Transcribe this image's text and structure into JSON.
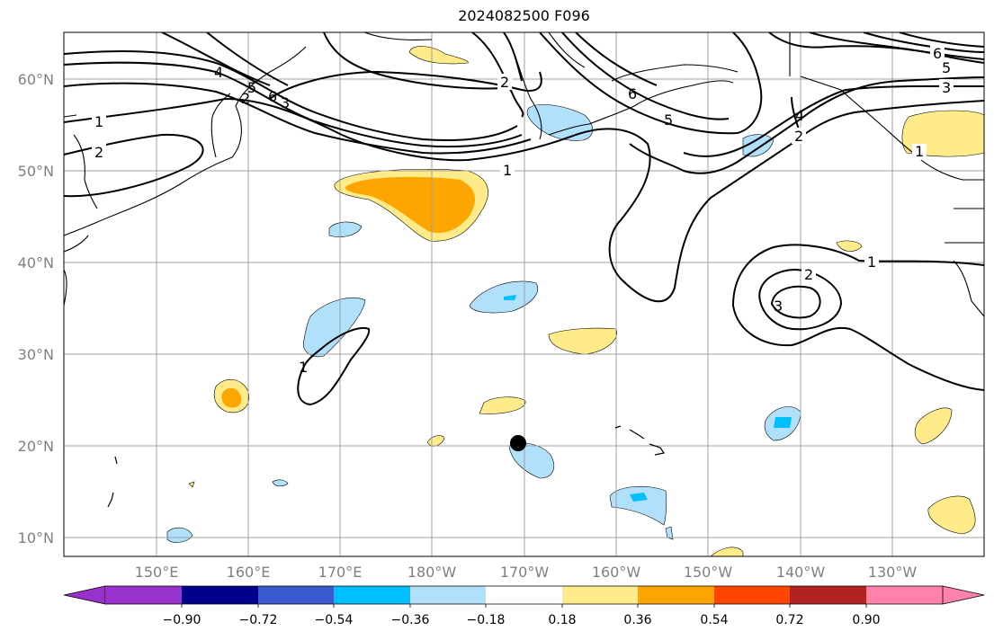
{
  "title": "2024082500 F096",
  "map": {
    "lat_labels": [
      "60°N",
      "50°N",
      "40°N",
      "30°N",
      "20°N",
      "10°N"
    ],
    "lon_labels": [
      "150°E",
      "160°E",
      "170°E",
      "180°W",
      "170°W",
      "160°W",
      "150°W",
      "140°W",
      "130°W"
    ],
    "contour_labels": [
      "1",
      "2",
      "4",
      "5",
      "6",
      "2",
      "1",
      "6",
      "5",
      "3",
      "2",
      "1",
      "6",
      "5",
      "3",
      "4",
      "2",
      "1",
      "2",
      "3",
      "1"
    ],
    "marker": {
      "lat": 20.2,
      "lon": -170.6,
      "symbol": "black-dot"
    }
  },
  "colorbar": {
    "ticks": [
      "−0.90",
      "−0.72",
      "−0.54",
      "−0.36",
      "−0.18",
      "0.18",
      "0.36",
      "0.54",
      "0.72",
      "0.90"
    ],
    "colors": [
      "#9932cc",
      "#00008b",
      "#3a5bcf",
      "#00bfff",
      "#b0e0fa",
      "#ffffff",
      "#ffeb8a",
      "#ffa500",
      "#ff4500",
      "#b22222",
      "#ff82ab"
    ]
  },
  "colors": {
    "contour": "#000000",
    "grid": "#a0a0a0",
    "coast": "#000000",
    "light_blue": "#b0e0fa",
    "cyan": "#00bfff",
    "yellow": "#ffeb8a",
    "orange": "#ffa500"
  }
}
